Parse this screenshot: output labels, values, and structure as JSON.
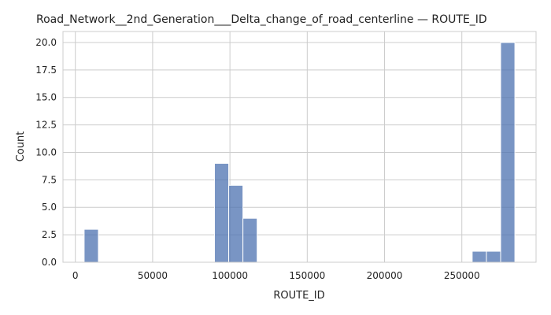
{
  "chart_data": {
    "type": "bar",
    "title": "Road_Network__2nd_Generation___Delta_change_of_road_centerline — ROUTE_ID",
    "xlabel": "ROUTE_ID",
    "ylabel": "Count",
    "xlim": [
      -8000,
      298000
    ],
    "ylim": [
      0,
      21
    ],
    "xticks": [
      {
        "value": 0,
        "label": "0"
      },
      {
        "value": 50000,
        "label": "50000"
      },
      {
        "value": 100000,
        "label": "100000"
      },
      {
        "value": 150000,
        "label": "150000"
      },
      {
        "value": 200000,
        "label": "200000"
      },
      {
        "value": 250000,
        "label": "250000"
      }
    ],
    "yticks": [
      {
        "value": 0,
        "label": "0.0"
      },
      {
        "value": 2.5,
        "label": "2.5"
      },
      {
        "value": 5,
        "label": "5.0"
      },
      {
        "value": 7.5,
        "label": "7.5"
      },
      {
        "value": 10,
        "label": "10.0"
      },
      {
        "value": 12.5,
        "label": "12.5"
      },
      {
        "value": 15,
        "label": "15.0"
      },
      {
        "value": 17.5,
        "label": "17.5"
      },
      {
        "value": 20,
        "label": "20.0"
      }
    ],
    "grid": true,
    "bins": [
      {
        "x0": 5700,
        "x1": 14900,
        "count": 3
      },
      {
        "x0": 90000,
        "x1": 99200,
        "count": 9
      },
      {
        "x0": 99200,
        "x1": 108400,
        "count": 7
      },
      {
        "x0": 108400,
        "x1": 117600,
        "count": 4
      },
      {
        "x0": 256700,
        "x1": 265900,
        "count": 1
      },
      {
        "x0": 265900,
        "x1": 275100,
        "count": 1
      },
      {
        "x0": 275100,
        "x1": 284300,
        "count": 20
      }
    ],
    "colors": {
      "bar": "#4c72b0",
      "grid": "#cccccc"
    }
  }
}
